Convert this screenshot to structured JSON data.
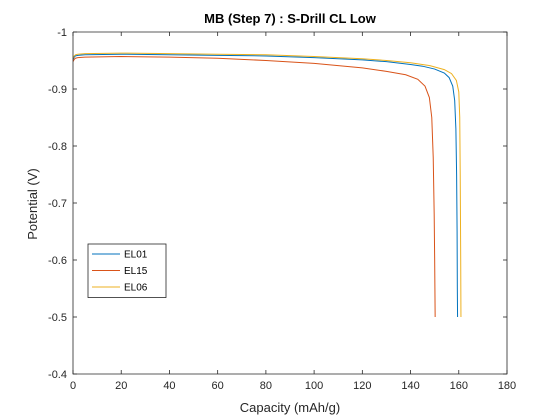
{
  "chart_data": {
    "type": "line",
    "title": "MB (Step 7) : S-Drill CL Low",
    "xlabel": "Capacity (mAh/g)",
    "ylabel": "Potential (V)",
    "xlim": [
      0,
      180
    ],
    "ylim": [
      -0.4,
      -1
    ],
    "y_reversed": true,
    "x_ticks": [
      0,
      20,
      40,
      60,
      80,
      100,
      120,
      140,
      160,
      180
    ],
    "y_ticks": [
      -0.4,
      -0.5,
      -0.6,
      -0.7,
      -0.8,
      -0.9,
      -1
    ],
    "y_tick_labels": [
      "-0.4",
      "-0.5",
      "-0.6",
      "-0.7",
      "-0.8",
      "-0.9",
      "-1"
    ],
    "grid": false,
    "legend_position": "bottom-left",
    "series": [
      {
        "name": "EL01",
        "color": "#0072BD",
        "x": [
          0,
          0.5,
          1,
          2,
          5,
          20,
          40,
          60,
          80,
          100,
          120,
          130,
          140,
          145,
          150,
          154,
          156,
          157.5,
          158.3,
          158.8,
          159.1,
          159.3,
          159.4,
          159.5
        ],
        "y": [
          -0.952,
          -0.956,
          -0.958,
          -0.959,
          -0.96,
          -0.961,
          -0.96,
          -0.959,
          -0.958,
          -0.955,
          -0.951,
          -0.948,
          -0.943,
          -0.94,
          -0.935,
          -0.928,
          -0.92,
          -0.905,
          -0.88,
          -0.83,
          -0.75,
          -0.65,
          -0.55,
          -0.5
        ]
      },
      {
        "name": "EL15",
        "color": "#D95319",
        "x": [
          0,
          0.5,
          1,
          2,
          5,
          20,
          40,
          60,
          80,
          100,
          110,
          120,
          130,
          138,
          143,
          146,
          147.8,
          148.8,
          149.4,
          149.8,
          150,
          150.1,
          150.2
        ],
        "y": [
          -0.948,
          -0.952,
          -0.954,
          -0.955,
          -0.956,
          -0.957,
          -0.956,
          -0.954,
          -0.95,
          -0.945,
          -0.941,
          -0.937,
          -0.931,
          -0.925,
          -0.917,
          -0.905,
          -0.885,
          -0.85,
          -0.78,
          -0.68,
          -0.6,
          -0.55,
          -0.5
        ]
      },
      {
        "name": "EL06",
        "color": "#EDB120",
        "x": [
          0,
          0.5,
          1,
          2,
          5,
          20,
          40,
          60,
          80,
          100,
          120,
          130,
          140,
          148,
          154,
          157,
          159,
          160,
          160.4,
          160.6,
          160.8,
          160.9
        ],
        "y": [
          -0.954,
          -0.958,
          -0.96,
          -0.961,
          -0.962,
          -0.963,
          -0.962,
          -0.961,
          -0.96,
          -0.957,
          -0.953,
          -0.95,
          -0.946,
          -0.941,
          -0.934,
          -0.927,
          -0.915,
          -0.895,
          -0.85,
          -0.75,
          -0.6,
          -0.5
        ]
      }
    ]
  }
}
